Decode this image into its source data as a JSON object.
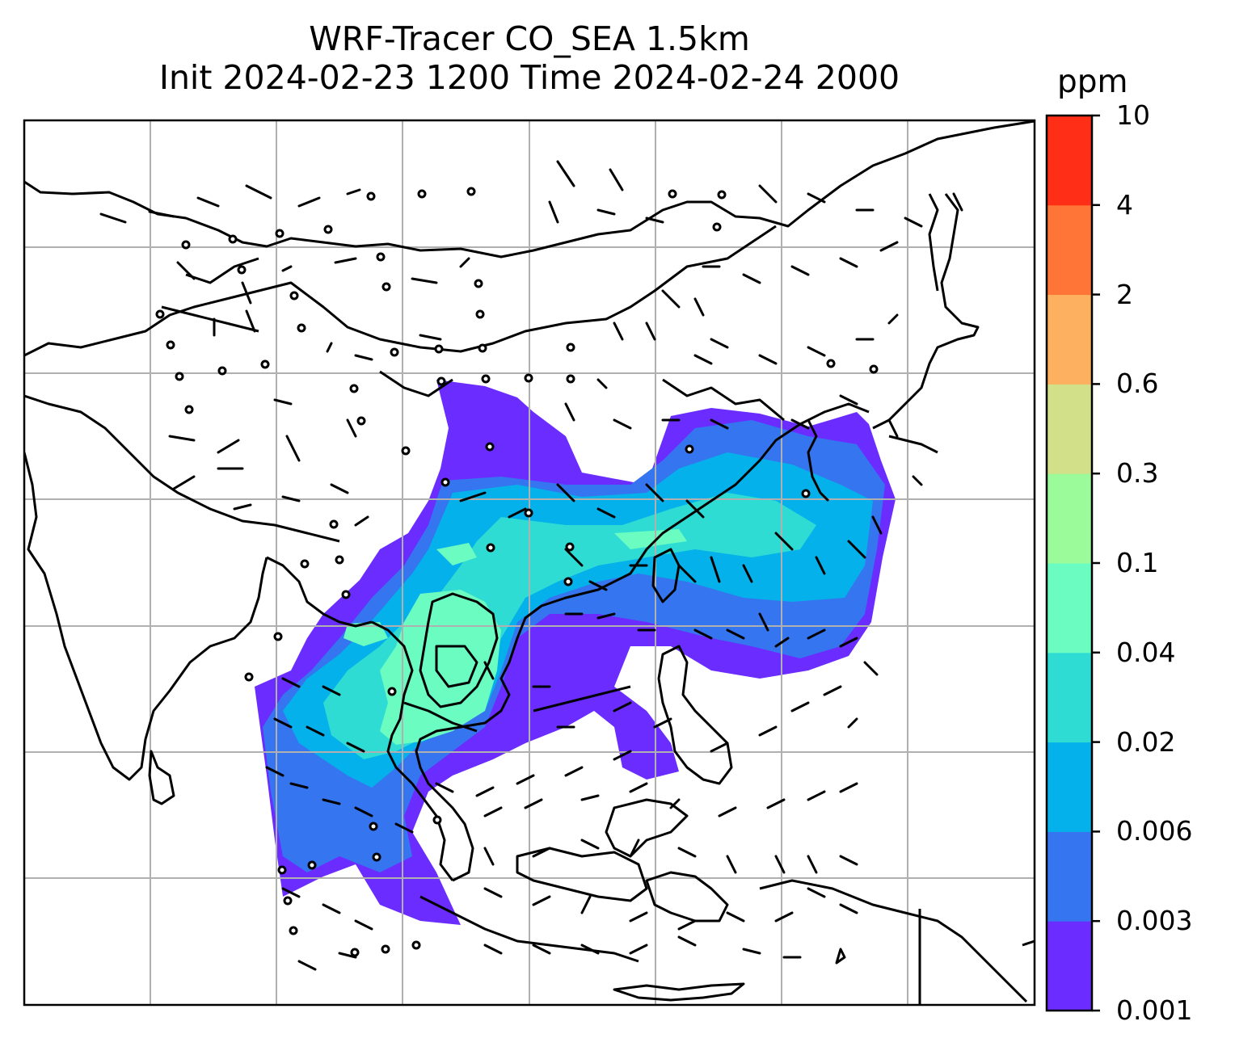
{
  "title": {
    "line1": "WRF-Tracer CO_SEA 1.5km",
    "line2": "Init 2024-02-23 1200 Time 2024-02-24 2000"
  },
  "colorbar": {
    "unit": "ppm",
    "tick_labels": [
      "0.001",
      "0.003",
      "0.006",
      "0.02",
      "0.04",
      "0.1",
      "0.3",
      "0.6",
      "2",
      "4",
      "10"
    ],
    "colors": [
      "#6a2cff",
      "#3575f0",
      "#05b1ea",
      "#2edcd4",
      "#6afcc0",
      "#9bfb9b",
      "#d2e089",
      "#fdb05f",
      "#ff7437",
      "#ff2f17"
    ]
  },
  "map": {
    "gridline_color": "#b0b0b0",
    "coastline_color": "#000000",
    "wind_barbs": true
  }
}
